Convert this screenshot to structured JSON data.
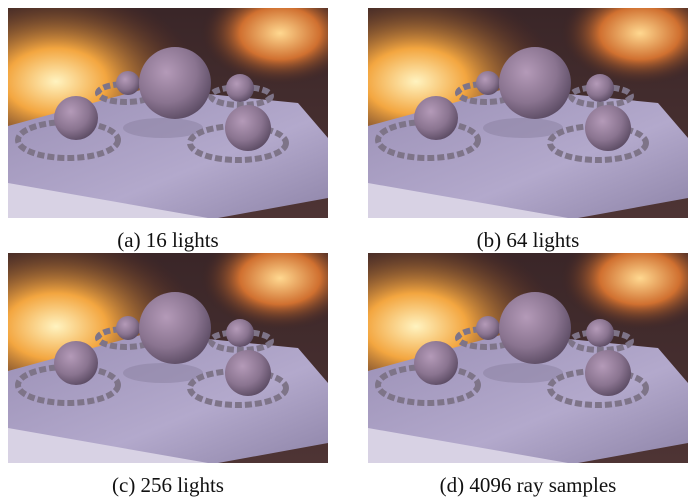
{
  "panels": [
    {
      "caption": "(a) 16 lights"
    },
    {
      "caption": "(b) 64 lights"
    },
    {
      "caption": "(c) 256 lights"
    },
    {
      "caption": "(d) 4096 ray samples"
    }
  ]
}
